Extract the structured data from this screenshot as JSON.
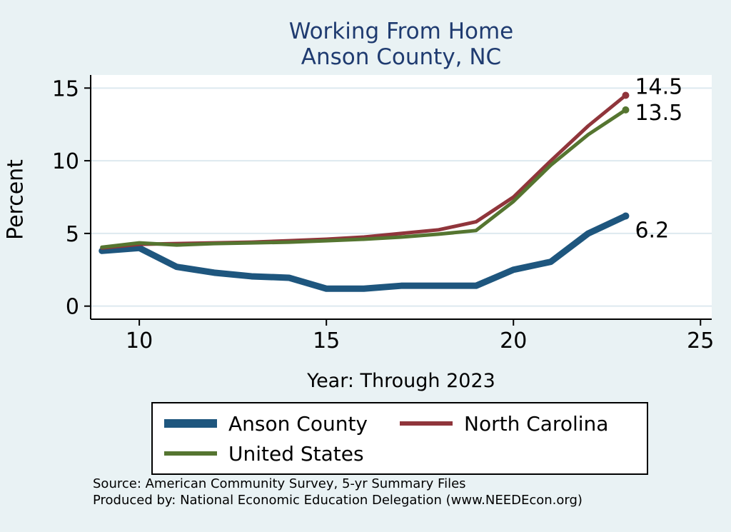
{
  "title": {
    "line1": "Working From Home",
    "line2": "Anson County, NC"
  },
  "axes": {
    "ylabel": "Percent",
    "xlabel": "Year: Through 2023"
  },
  "footer": {
    "line1": "Source: American Community Survey, 5-yr Summary Files",
    "line2": "Produced by: National Economic Education Delegation (www.NEEDEcon.org)"
  },
  "colors": {
    "background": "#e9f2f4",
    "plot_bg": "#ffffff",
    "grid": "#dde9ef",
    "axis": "#000000",
    "title": "#1f3b70",
    "annotation": "#000000"
  },
  "chart_data": {
    "type": "line",
    "x": [
      9,
      10,
      11,
      12,
      13,
      14,
      15,
      16,
      17,
      18,
      19,
      20,
      21,
      22,
      23
    ],
    "series": [
      {
        "name": "Anson County",
        "color": "#1e567e",
        "line_width": 9,
        "values": [
          3.8,
          4.0,
          2.7,
          2.3,
          2.05,
          1.95,
          1.2,
          1.2,
          1.4,
          1.4,
          1.4,
          2.5,
          3.05,
          5.0,
          6.2
        ],
        "end_label": "6.2"
      },
      {
        "name": "North Carolina",
        "color": "#90353b",
        "line_width": 5,
        "values": [
          4.0,
          4.25,
          4.3,
          4.35,
          4.4,
          4.5,
          4.6,
          4.75,
          5.0,
          5.25,
          5.8,
          7.5,
          10.0,
          12.4,
          14.5
        ],
        "end_label": "14.5"
      },
      {
        "name": "United States",
        "color": "#557530",
        "line_width": 5,
        "values": [
          4.05,
          4.35,
          4.2,
          4.3,
          4.35,
          4.4,
          4.5,
          4.6,
          4.75,
          4.95,
          5.2,
          7.2,
          9.7,
          11.8,
          13.5
        ],
        "end_label": "13.5"
      }
    ],
    "xticks": [
      10,
      15,
      20,
      25
    ],
    "yticks": [
      0,
      5,
      10,
      15
    ],
    "xlim": [
      8.7,
      25.3
    ],
    "ylim": [
      -0.9,
      15.9
    ],
    "grid": "horizontal",
    "legend_position": "bottom"
  }
}
